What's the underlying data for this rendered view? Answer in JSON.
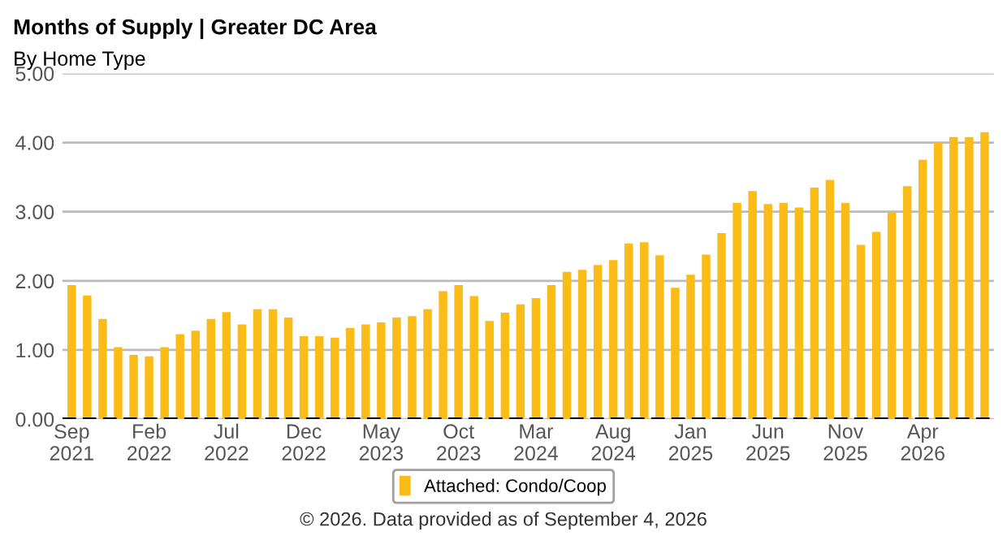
{
  "chart_data": {
    "type": "bar",
    "title": "Months of Supply | Greater DC Area",
    "subtitle": "By Home Type",
    "categories": [
      "Sep\n2021",
      null,
      null,
      null,
      null,
      "Feb\n2022",
      null,
      null,
      null,
      null,
      "Jul\n2022",
      null,
      null,
      null,
      null,
      "Dec\n2022",
      null,
      null,
      null,
      null,
      "May\n2023",
      null,
      null,
      null,
      null,
      "Oct\n2023",
      null,
      null,
      null,
      null,
      "Mar\n2024",
      null,
      null,
      null,
      null,
      "Aug\n2024",
      null,
      null,
      null,
      null,
      "Jan\n2025",
      null,
      null,
      null,
      null,
      "Jun\n2025",
      null,
      null,
      null,
      null,
      "Nov\n2025",
      null,
      null,
      null,
      null,
      "Apr\n2026",
      null,
      null,
      null,
      null
    ],
    "series": [
      {
        "name": "Attached: Condo/Coop",
        "color": "#fbbc18",
        "values": [
          1.94,
          1.79,
          1.45,
          1.04,
          0.93,
          0.91,
          1.04,
          1.23,
          1.28,
          1.45,
          1.55,
          1.37,
          1.59,
          1.59,
          1.47,
          1.2,
          1.2,
          1.18,
          1.32,
          1.37,
          1.4,
          1.47,
          1.49,
          1.59,
          1.85,
          1.94,
          1.78,
          1.42,
          1.54,
          1.66,
          1.75,
          1.94,
          2.13,
          2.16,
          2.23,
          2.3,
          2.54,
          2.56,
          2.37,
          1.9,
          2.09,
          2.38,
          2.69,
          3.13,
          3.3,
          3.11,
          3.13,
          3.06,
          3.35,
          3.46,
          3.13,
          2.52,
          2.71,
          2.99,
          3.37,
          3.75,
          4.0,
          4.08,
          4.08,
          4.15
        ]
      }
    ],
    "ylim": [
      0,
      5
    ],
    "yticks": [
      {
        "value": 0,
        "label": "0.00"
      },
      {
        "value": 1,
        "label": "1.00"
      },
      {
        "value": 2,
        "label": "2.00"
      },
      {
        "value": 3,
        "label": "3.00"
      },
      {
        "value": 4,
        "label": "4.00"
      },
      {
        "value": 5,
        "label": "5.00"
      }
    ],
    "grid": "y",
    "legend": "bottom",
    "ref_lines": [
      {
        "axis": "y",
        "value": 0,
        "color": "#000000",
        "line_style": "dashed"
      }
    ],
    "annotations": [
      "© 2026. Data provided as of September 4, 2026"
    ]
  }
}
